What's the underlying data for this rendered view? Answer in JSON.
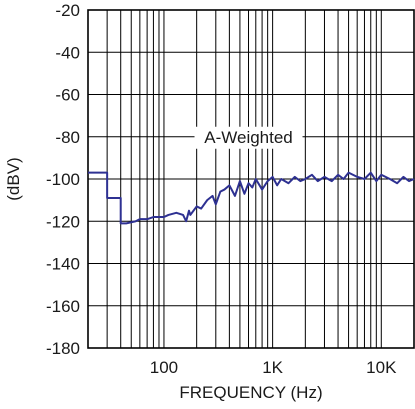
{
  "chart_data": {
    "type": "line",
    "xlabel": "FREQUENCY (Hz)",
    "ylabel": "(dBV)",
    "x_scale": "log",
    "xlim": [
      20,
      20000
    ],
    "ylim": [
      -180,
      -20
    ],
    "grid": true,
    "x_ticks": [
      {
        "value": 100,
        "label": "100"
      },
      {
        "value": 1000,
        "label": "1K"
      },
      {
        "value": 10000,
        "label": "10K"
      }
    ],
    "y_ticks": [
      {
        "value": -20,
        "label": "-20"
      },
      {
        "value": -40,
        "label": "-40"
      },
      {
        "value": -60,
        "label": "-60"
      },
      {
        "value": -80,
        "label": "-80"
      },
      {
        "value": -100,
        "label": "-100"
      },
      {
        "value": -120,
        "label": "-120"
      },
      {
        "value": -140,
        "label": "-140"
      },
      {
        "value": -160,
        "label": "-160"
      },
      {
        "value": -180,
        "label": "-180"
      }
    ],
    "annotation": "A-Weighted",
    "colors": {
      "series": "#2e3192",
      "grid": "#000000"
    },
    "series": [
      {
        "x": [
          20,
          30,
          30,
          40,
          40,
          45,
          55,
          60,
          70,
          80,
          100,
          110,
          130,
          150,
          160,
          170,
          175,
          200,
          220,
          250,
          280,
          300,
          330,
          360,
          400,
          450,
          500,
          550,
          600,
          650,
          700,
          800,
          900,
          1000,
          1100,
          1200,
          1400,
          1600,
          1800,
          2000,
          2300,
          2600,
          3000,
          3500,
          4000,
          4500,
          5000,
          6000,
          7000,
          8000,
          9000,
          10000,
          12000,
          14000,
          16000,
          18000,
          20000
        ],
        "y": [
          -97,
          -97,
          -109,
          -109,
          -121,
          -121,
          -120,
          -119,
          -119,
          -118,
          -118,
          -117,
          -116,
          -117,
          -120,
          -115,
          -117,
          -113,
          -114,
          -110,
          -108,
          -112,
          -106,
          -105,
          -103,
          -108,
          -101,
          -107,
          -102,
          -104,
          -100,
          -105,
          -101,
          -99,
          -103,
          -100,
          -102,
          -99,
          -101,
          -100,
          -98,
          -101,
          -99,
          -101,
          -98,
          -100,
          -97,
          -99,
          -100,
          -97,
          -101,
          -98,
          -100,
          -102,
          -99,
          -101,
          -100
        ]
      }
    ]
  }
}
